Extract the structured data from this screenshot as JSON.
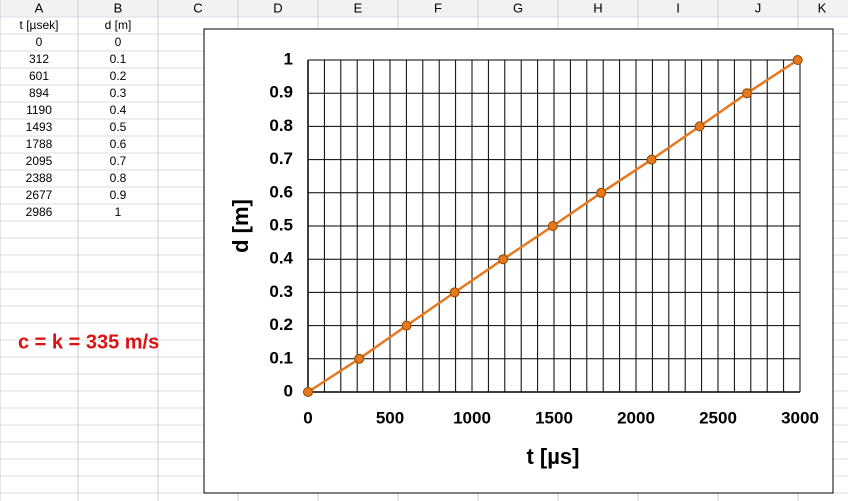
{
  "columns": [
    "A",
    "B",
    "C",
    "D",
    "E",
    "F",
    "G",
    "H",
    "I",
    "J",
    "K"
  ],
  "table": {
    "header": [
      "t [µsek]",
      "d [m]"
    ],
    "rows": [
      [
        "0",
        "0"
      ],
      [
        "312",
        "0.1"
      ],
      [
        "601",
        "0.2"
      ],
      [
        "894",
        "0.3"
      ],
      [
        "1190",
        "0.4"
      ],
      [
        "1493",
        "0.5"
      ],
      [
        "1788",
        "0.6"
      ],
      [
        "2095",
        "0.7"
      ],
      [
        "2388",
        "0.8"
      ],
      [
        "2677",
        "0.9"
      ],
      [
        "2986",
        "1"
      ]
    ]
  },
  "note": "c = k = 335 m/s",
  "chart_data": {
    "type": "line",
    "xlabel": "t [µs]",
    "ylabel": "d [m]",
    "x": [
      0,
      312,
      601,
      894,
      1190,
      1493,
      1788,
      2095,
      2388,
      2677,
      2986
    ],
    "values": [
      0,
      0.1,
      0.2,
      0.3,
      0.4,
      0.5,
      0.6,
      0.7,
      0.8,
      0.9,
      1
    ],
    "color": "#e8781e",
    "marker_stroke": "#8a4a00",
    "xlim": [
      0,
      3000
    ],
    "xticks": [
      0,
      500,
      1000,
      1500,
      2000,
      2500,
      3000
    ],
    "ylim": [
      0,
      1
    ],
    "yticks": [
      0,
      0.1,
      0.2,
      0.3,
      0.4,
      0.5,
      0.6,
      0.7,
      0.8,
      0.9,
      1
    ],
    "grid": true
  }
}
